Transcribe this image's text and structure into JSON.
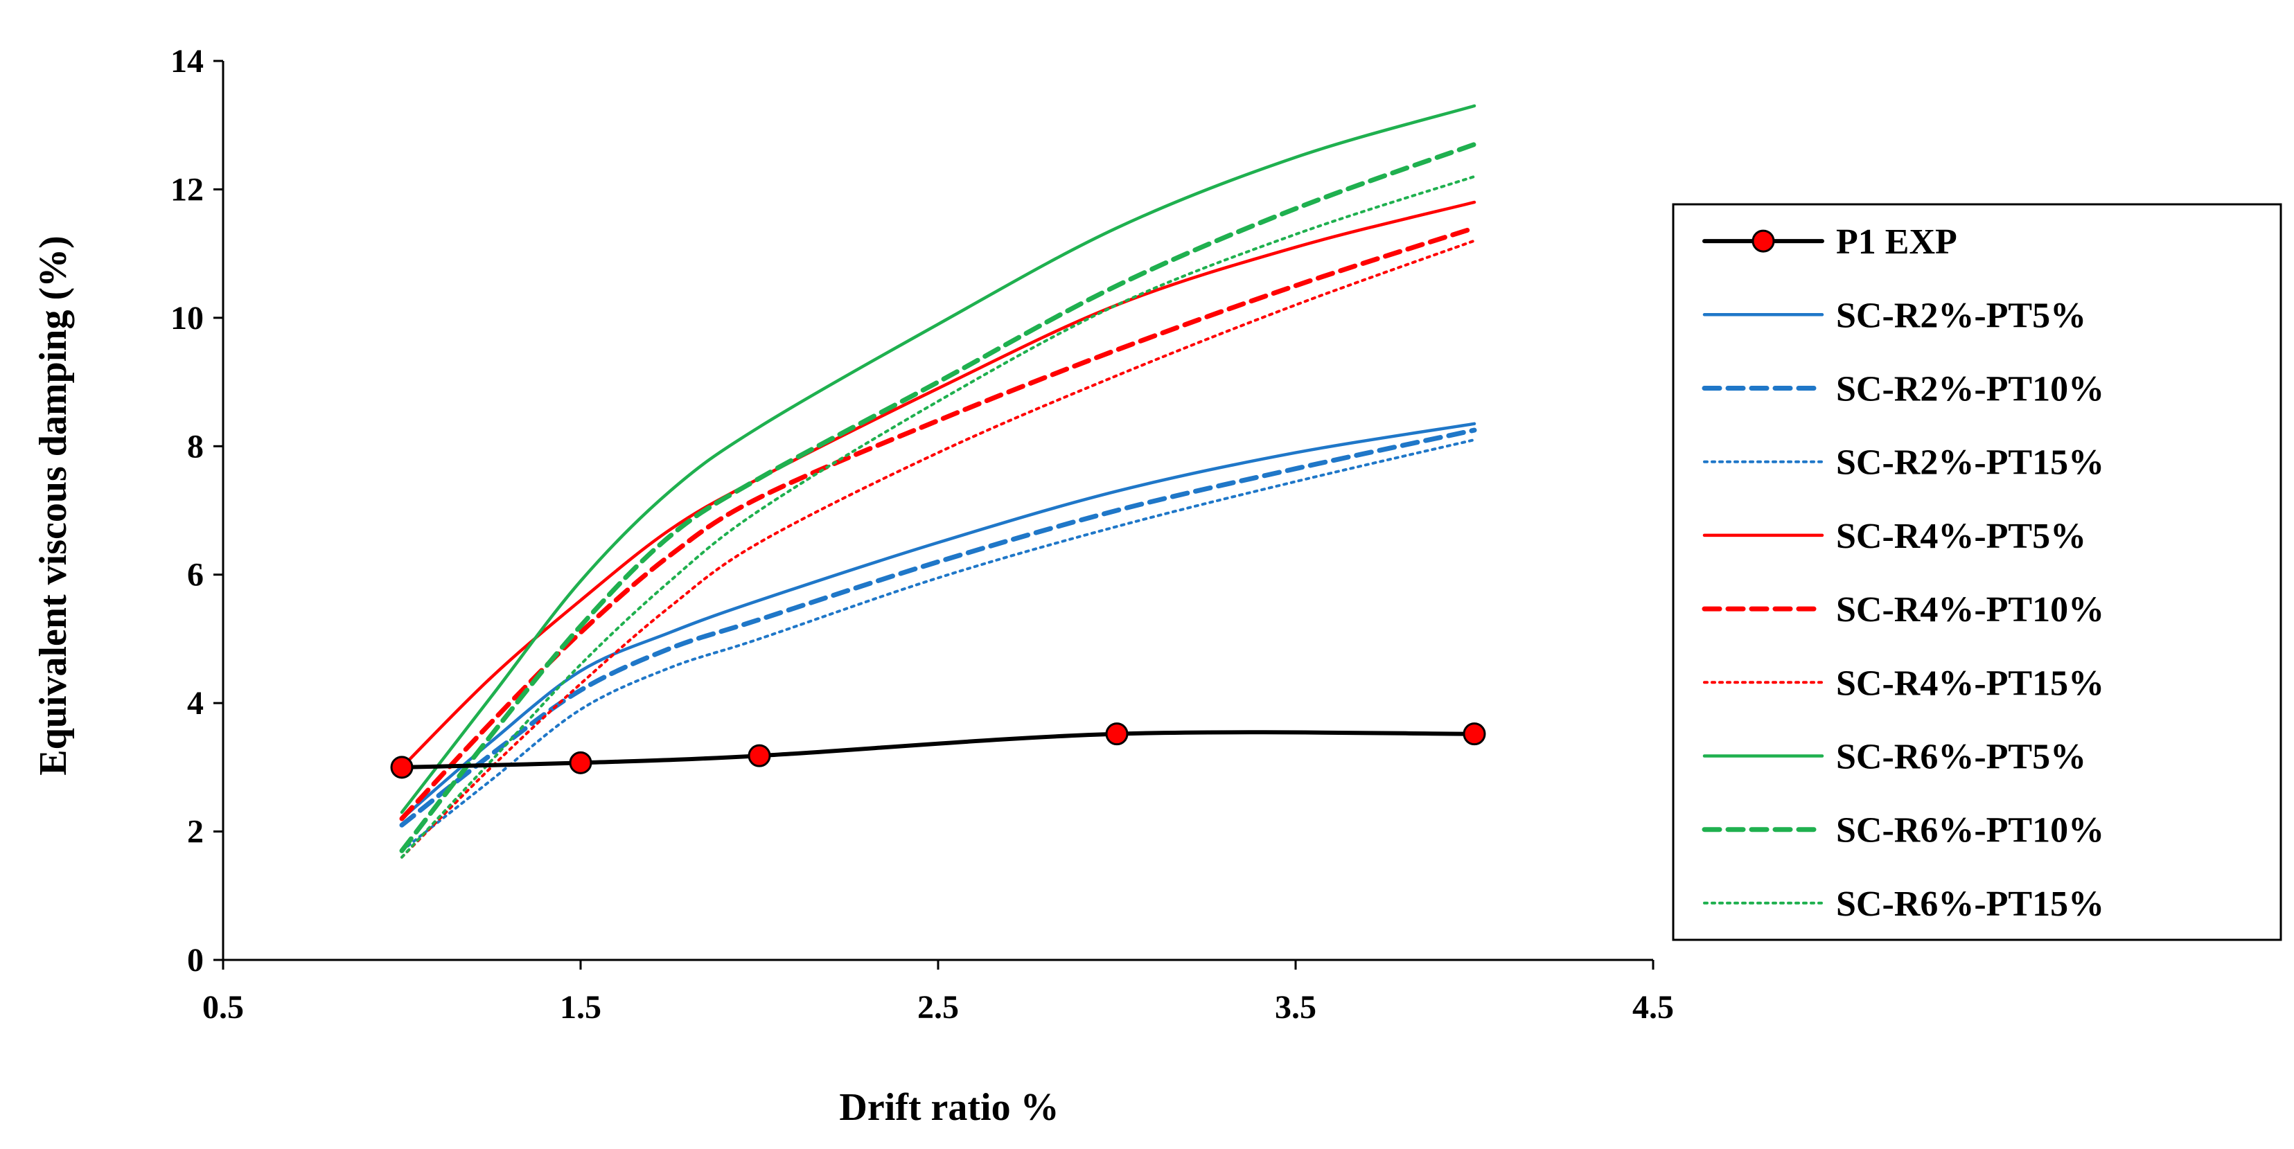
{
  "chart_data": {
    "type": "line",
    "title": "",
    "xlabel": "Drift ratio %",
    "ylabel": "Equivalent viscous damping (%)",
    "xlim": [
      0.5,
      4.5
    ],
    "ylim": [
      0,
      14
    ],
    "xticks": [
      "0.5",
      "1.5",
      "2.5",
      "3.5",
      "4.5"
    ],
    "yticks": [
      "0",
      "2",
      "4",
      "6",
      "8",
      "10",
      "12",
      "14"
    ],
    "grid": false,
    "legend_position": "right",
    "series": [
      {
        "name": "P1 EXP",
        "color": "#000000",
        "style": "solid",
        "marker": "circle",
        "marker_color": "#ff0000",
        "x": [
          1,
          1.5,
          2,
          3,
          4
        ],
        "y": [
          3.0,
          3.07,
          3.18,
          3.52,
          3.52
        ]
      },
      {
        "name": "SC-R2%-PT5%",
        "color": "#1f77c8",
        "style": "solid",
        "x": [
          1,
          1.25,
          1.5,
          1.75,
          2,
          2.5,
          3,
          3.5,
          4
        ],
        "y": [
          2.2,
          3.4,
          4.5,
          5.1,
          5.6,
          6.5,
          7.3,
          7.9,
          8.35
        ]
      },
      {
        "name": "SC-R2%-PT10%",
        "color": "#1f77c8",
        "style": "dashed",
        "x": [
          1,
          1.25,
          1.5,
          1.75,
          2,
          2.5,
          3,
          3.5,
          4
        ],
        "y": [
          2.1,
          3.2,
          4.2,
          4.85,
          5.3,
          6.2,
          7.0,
          7.65,
          8.25
        ]
      },
      {
        "name": "SC-R2%-PT15%",
        "color": "#1f77c8",
        "style": "dotted",
        "x": [
          1,
          1.25,
          1.5,
          1.75,
          2,
          2.5,
          3,
          3.5,
          4
        ],
        "y": [
          1.7,
          2.8,
          3.9,
          4.55,
          5.0,
          5.95,
          6.75,
          7.45,
          8.1
        ]
      },
      {
        "name": "SC-R4%-PT5%",
        "color": "#ff0000",
        "style": "solid",
        "x": [
          1,
          1.25,
          1.5,
          1.75,
          2,
          2.5,
          3,
          3.5,
          4
        ],
        "y": [
          3.0,
          4.4,
          5.6,
          6.7,
          7.5,
          8.9,
          10.2,
          11.1,
          11.8
        ]
      },
      {
        "name": "SC-R4%-PT10%",
        "color": "#ff0000",
        "style": "dashed",
        "x": [
          1,
          1.25,
          1.5,
          1.75,
          2,
          2.5,
          3,
          3.5,
          4
        ],
        "y": [
          2.2,
          3.7,
          5.1,
          6.3,
          7.2,
          8.4,
          9.5,
          10.5,
          11.4
        ]
      },
      {
        "name": "SC-R4%-PT15%",
        "color": "#ff0000",
        "style": "dotted",
        "x": [
          1,
          1.25,
          1.5,
          1.75,
          2,
          2.5,
          3,
          3.5,
          4
        ],
        "y": [
          1.6,
          3.0,
          4.3,
          5.5,
          6.5,
          7.9,
          9.1,
          10.2,
          11.2
        ]
      },
      {
        "name": "SC-R6%-PT5%",
        "color": "#1fb04f",
        "style": "solid",
        "x": [
          1,
          1.25,
          1.5,
          1.75,
          2,
          2.5,
          3,
          3.5,
          4
        ],
        "y": [
          2.3,
          4.1,
          5.9,
          7.3,
          8.3,
          9.9,
          11.4,
          12.5,
          13.3
        ]
      },
      {
        "name": "SC-R6%-PT10%",
        "color": "#1fb04f",
        "style": "dashed",
        "x": [
          1,
          1.25,
          1.5,
          1.75,
          2,
          2.5,
          3,
          3.5,
          4
        ],
        "y": [
          1.7,
          3.5,
          5.2,
          6.6,
          7.5,
          9.0,
          10.5,
          11.7,
          12.7
        ]
      },
      {
        "name": "SC-R6%-PT15%",
        "color": "#1fb04f",
        "style": "dotted",
        "x": [
          1,
          1.25,
          1.5,
          1.75,
          2,
          2.5,
          3,
          3.5,
          4
        ],
        "y": [
          1.6,
          3.1,
          4.6,
          5.9,
          7.0,
          8.7,
          10.2,
          11.3,
          12.2
        ]
      }
    ]
  }
}
